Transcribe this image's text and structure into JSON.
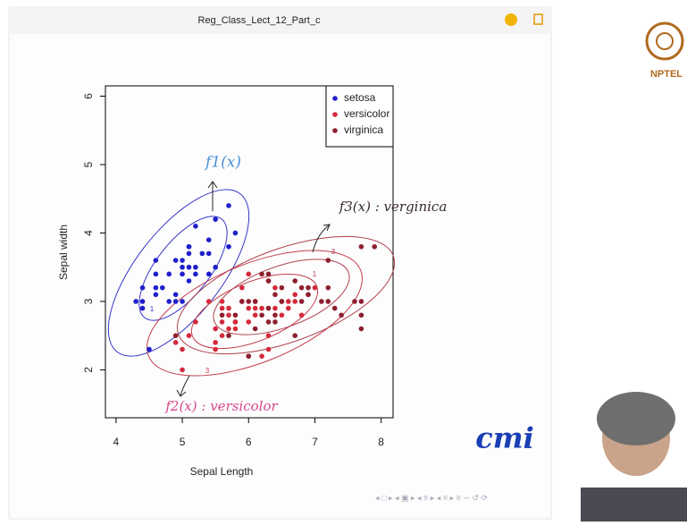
{
  "window": {
    "title": "Reg_Class_Lect_12_Part_c"
  },
  "logo": {
    "text": "NPTEL"
  },
  "watermark": "cmi",
  "chart_data": {
    "type": "scatter",
    "xlabel": "Sepal Length",
    "ylabel": "Sepal width",
    "xlim": [
      3.84,
      8.18
    ],
    "ylim": [
      1.3,
      6.15
    ],
    "xticks": [
      4,
      5,
      6,
      7,
      8
    ],
    "yticks": [
      2,
      3,
      4,
      5,
      6
    ],
    "legend": "top-right",
    "contour_labels": [
      "1",
      "3"
    ],
    "annotations": [
      "f1(x)",
      "f3(x) : verginica",
      "f2(x) : versicolor"
    ],
    "series": [
      {
        "name": "setosa",
        "color": "#1f1fcc",
        "x": [
          5.1,
          4.9,
          4.7,
          4.6,
          5.0,
          5.4,
          4.6,
          5.0,
          4.4,
          4.9,
          5.4,
          4.8,
          4.8,
          4.3,
          5.8,
          5.7,
          5.7,
          5.1,
          5.4,
          5.1,
          4.6,
          5.1,
          5.0,
          5.2,
          5.2,
          5.2,
          5.5,
          4.9,
          5.5,
          4.4,
          5.0,
          4.5,
          4.4,
          5.1,
          4.6,
          5.3
        ],
        "values": [
          3.5,
          3.0,
          3.2,
          3.1,
          3.6,
          3.9,
          3.4,
          3.4,
          2.9,
          3.1,
          3.7,
          3.4,
          3.0,
          3.0,
          4.0,
          4.4,
          3.8,
          3.8,
          3.4,
          3.7,
          3.6,
          3.3,
          3.0,
          3.5,
          3.4,
          4.1,
          4.2,
          3.6,
          3.5,
          3.0,
          3.5,
          2.3,
          3.2,
          3.8,
          3.2,
          3.7
        ]
      },
      {
        "name": "versicolor",
        "color": "#d42a3c",
        "x": [
          7.0,
          6.4,
          6.9,
          5.5,
          6.5,
          5.7,
          6.3,
          4.9,
          6.6,
          5.2,
          5.0,
          5.9,
          6.0,
          6.1,
          5.6,
          6.7,
          5.6,
          5.8,
          6.2,
          5.6,
          5.9,
          6.1,
          6.3,
          6.4,
          6.6,
          6.8,
          6.7,
          6.0,
          5.7,
          5.5,
          5.8,
          6.0,
          5.4,
          6.0,
          6.3,
          5.5,
          6.1,
          5.8,
          5.0,
          5.6,
          5.7,
          6.2,
          5.1
        ],
        "values": [
          3.2,
          3.2,
          3.1,
          2.3,
          2.8,
          2.8,
          3.3,
          2.4,
          2.9,
          2.7,
          2.0,
          3.0,
          2.2,
          2.9,
          2.9,
          3.1,
          3.0,
          2.7,
          2.2,
          2.5,
          3.2,
          2.8,
          2.5,
          2.9,
          3.0,
          2.8,
          3.0,
          2.9,
          2.6,
          2.4,
          2.7,
          2.7,
          3.0,
          3.4,
          2.3,
          2.6,
          3.0,
          2.6,
          2.3,
          2.7,
          2.9,
          2.9,
          2.5
        ]
      },
      {
        "name": "virginica",
        "color": "#8e1f2e",
        "x": [
          6.3,
          7.1,
          6.3,
          6.5,
          7.6,
          4.9,
          7.3,
          6.7,
          7.2,
          6.5,
          6.4,
          6.8,
          5.7,
          5.8,
          7.7,
          7.7,
          6.0,
          6.9,
          5.6,
          7.7,
          6.3,
          6.7,
          7.2,
          6.2,
          6.1,
          6.4,
          7.2,
          7.4,
          7.9,
          6.1,
          7.7,
          6.3,
          6.4,
          6.0,
          6.9,
          6.8,
          6.5,
          6.2,
          5.9
        ],
        "values": [
          3.3,
          3.0,
          2.9,
          3.0,
          3.0,
          2.5,
          2.9,
          2.5,
          3.6,
          3.2,
          2.7,
          3.0,
          2.5,
          2.8,
          3.8,
          2.6,
          2.2,
          3.2,
          2.8,
          2.8,
          2.7,
          3.3,
          3.2,
          2.8,
          3.0,
          2.8,
          3.0,
          2.8,
          3.8,
          2.6,
          3.0,
          3.4,
          3.1,
          3.0,
          3.1,
          3.2,
          3.0,
          3.4,
          3.0
        ]
      }
    ]
  }
}
